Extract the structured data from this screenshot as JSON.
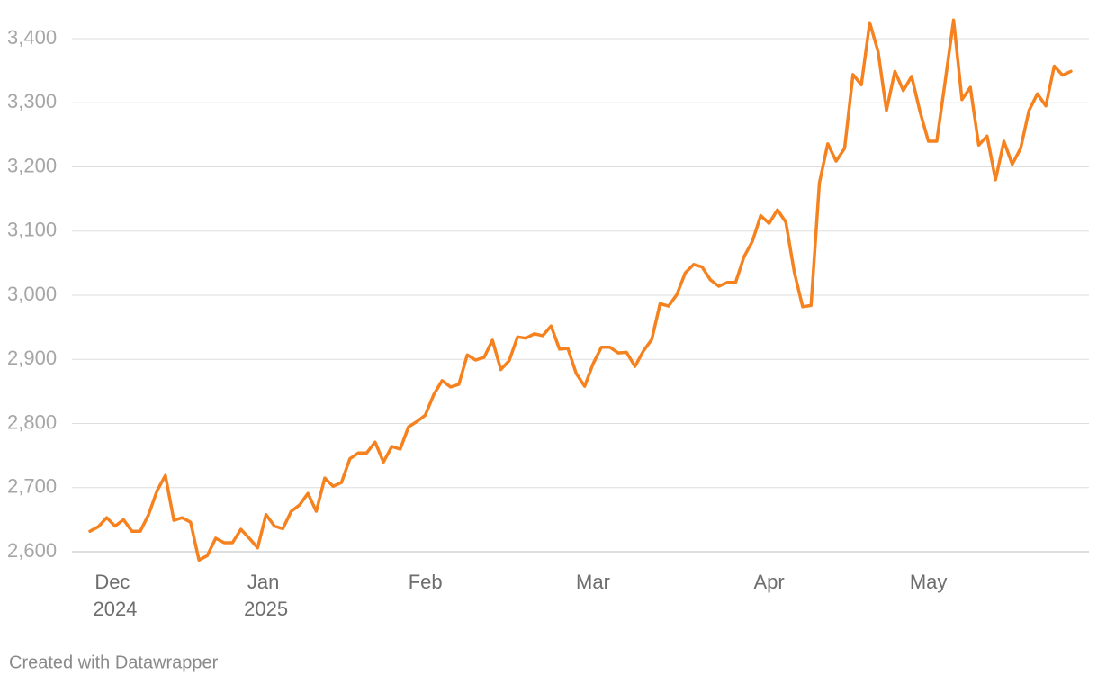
{
  "chart_data": {
    "type": "line",
    "categories": [
      null,
      null,
      null,
      "Dec 2024",
      null,
      null,
      null,
      null,
      null,
      null,
      null,
      null,
      null,
      null,
      null,
      null,
      null,
      null,
      null,
      null,
      null,
      "Jan 2025",
      null,
      null,
      null,
      null,
      null,
      null,
      null,
      null,
      null,
      null,
      null,
      null,
      null,
      null,
      null,
      null,
      null,
      null,
      "Feb",
      null,
      null,
      null,
      null,
      null,
      null,
      null,
      null,
      null,
      null,
      null,
      null,
      null,
      null,
      null,
      null,
      null,
      null,
      null,
      "Mar",
      null,
      null,
      null,
      null,
      null,
      null,
      null,
      null,
      null,
      null,
      null,
      null,
      null,
      null,
      null,
      null,
      null,
      null,
      null,
      null,
      "Apr",
      null,
      null,
      null,
      null,
      null,
      null,
      null,
      null,
      null,
      null,
      null,
      null,
      null,
      null,
      null,
      null,
      null,
      null,
      "May",
      null,
      null,
      null,
      null,
      null,
      null,
      null,
      null,
      null,
      null,
      null,
      null,
      null,
      null,
      null,
      null,
      null
    ],
    "series": [
      {
        "color": "#f5821f",
        "values": [
          2632,
          2639,
          2653,
          2640,
          2650,
          2632,
          2632,
          2658,
          2695,
          2719,
          2649,
          2653,
          2646,
          2587,
          2594,
          2621,
          2614,
          2614,
          2635,
          2621,
          2606,
          2658,
          2640,
          2636,
          2663,
          2673,
          2691,
          2663,
          2715,
          2702,
          2708,
          2745,
          2754,
          2754,
          2771,
          2740,
          2764,
          2760,
          2795,
          2803,
          2813,
          2845,
          2867,
          2857,
          2861,
          2907,
          2899,
          2903,
          2930,
          2884,
          2898,
          2935,
          2933,
          2940,
          2937,
          2952,
          2916,
          2917,
          2878,
          2858,
          2893,
          2919,
          2919,
          2910,
          2911,
          2889,
          2913,
          2931,
          2987,
          2983,
          3001,
          3035,
          3048,
          3044,
          3024,
          3014,
          3020,
          3020,
          3060,
          3084,
          3124,
          3112,
          3133,
          3114,
          3036,
          2982,
          2984,
          3175,
          3236,
          3209,
          3229,
          3344,
          3328,
          3425,
          3380,
          3288,
          3349,
          3319,
          3341,
          3286,
          3240,
          3240,
          3334,
          3429,
          3305,
          3324,
          3234,
          3248,
          3180,
          3240,
          3204,
          3229,
          3288,
          3314,
          3295,
          3357,
          3343,
          3349
        ]
      }
    ],
    "ylim": [
      2600,
      3400
    ],
    "yticks": [
      {
        "value": 2600,
        "label": "2,600"
      },
      {
        "value": 2700,
        "label": "2,700"
      },
      {
        "value": 2800,
        "label": "2,800"
      },
      {
        "value": 2900,
        "label": "2,900"
      },
      {
        "value": 3000,
        "label": "3,000"
      },
      {
        "value": 3100,
        "label": "3,100"
      },
      {
        "value": 3200,
        "label": "3,200"
      },
      {
        "value": 3300,
        "label": "3,300"
      },
      {
        "value": 3400,
        "label": "3,400"
      }
    ],
    "grid": true,
    "credit": "Created with Datawrapper"
  }
}
